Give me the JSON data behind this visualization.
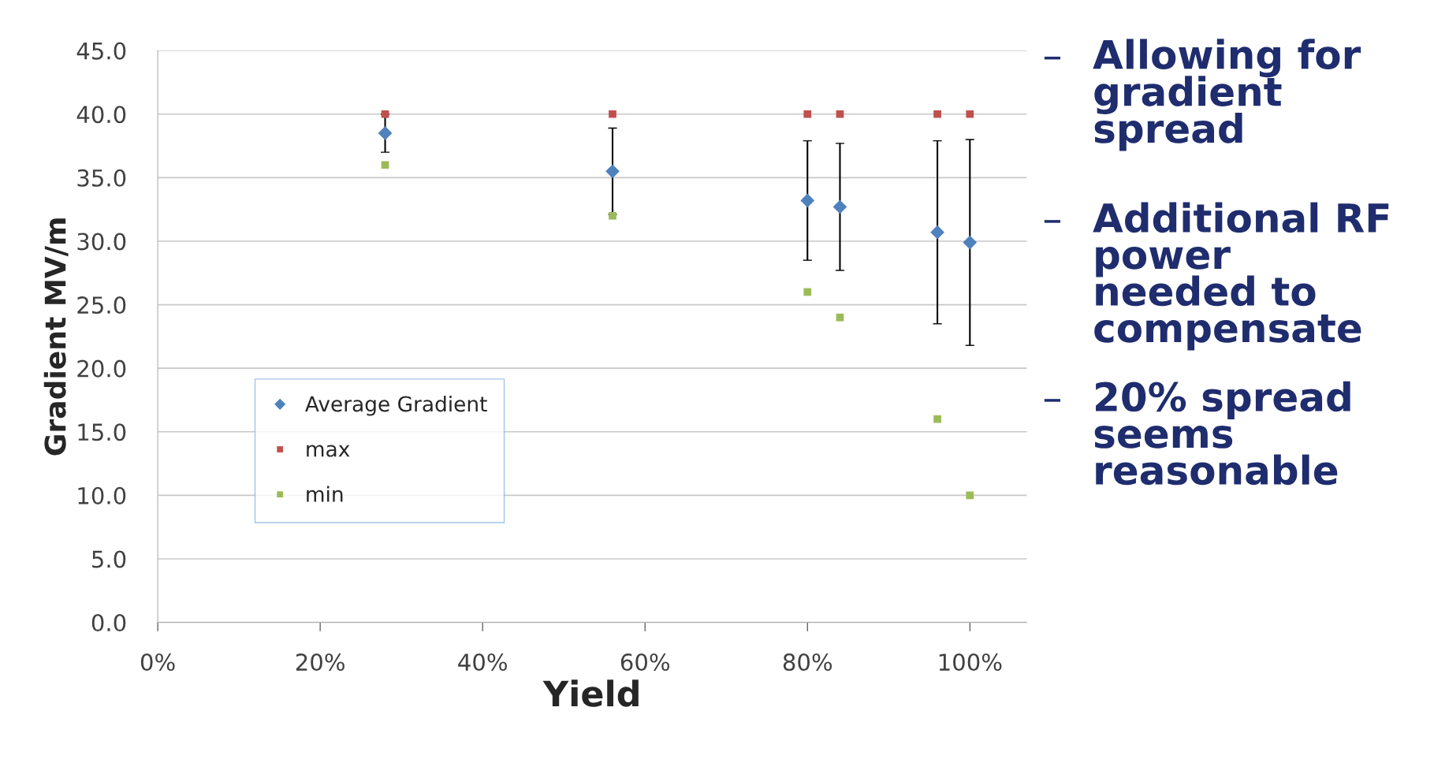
{
  "chart_data": {
    "type": "scatter",
    "xlabel": "Yield",
    "ylabel": "Gradient MV/m",
    "x": [
      28,
      56,
      80,
      84,
      96,
      100
    ],
    "series": [
      {
        "name": "Average Gradient",
        "color": "#4f81bd",
        "marker": "diamond",
        "values": [
          38.5,
          35.5,
          33.2,
          32.7,
          30.7,
          29.9
        ],
        "errors": [
          1.5,
          3.4,
          4.7,
          5.0,
          7.2,
          8.1
        ]
      },
      {
        "name": "max",
        "color": "#c0504d",
        "marker": "square",
        "values": [
          40,
          40,
          40,
          40,
          40,
          40
        ]
      },
      {
        "name": "min",
        "color": "#9bbb59",
        "marker": "square",
        "values": [
          36,
          32,
          26,
          24,
          16,
          10
        ]
      }
    ],
    "xlim": [
      0,
      107
    ],
    "xticks": [
      {
        "value": 0,
        "label": "0%"
      },
      {
        "value": 20,
        "label": "20%"
      },
      {
        "value": 40,
        "label": "40%"
      },
      {
        "value": 60,
        "label": "60%"
      },
      {
        "value": 80,
        "label": "80%"
      },
      {
        "value": 100,
        "label": "100%"
      }
    ],
    "ylim": [
      0,
      45
    ],
    "yticks": [
      {
        "value": 0,
        "label": "0.0"
      },
      {
        "value": 5,
        "label": "5.0"
      },
      {
        "value": 10,
        "label": "10.0"
      },
      {
        "value": 15,
        "label": "15.0"
      },
      {
        "value": 20,
        "label": "20.0"
      },
      {
        "value": 25,
        "label": "25.0"
      },
      {
        "value": 30,
        "label": "30.0"
      },
      {
        "value": 35,
        "label": "35.0"
      },
      {
        "value": 40,
        "label": "40.0"
      },
      {
        "value": 45,
        "label": "45.0"
      }
    ],
    "grid": "y",
    "legend": "left",
    "annotations": [
      "– Allowing for\ngradient\nspread",
      "– Additional RF\npower\nneeded to\ncompensate",
      "– 20% spread\nseems\nreasonable"
    ]
  }
}
